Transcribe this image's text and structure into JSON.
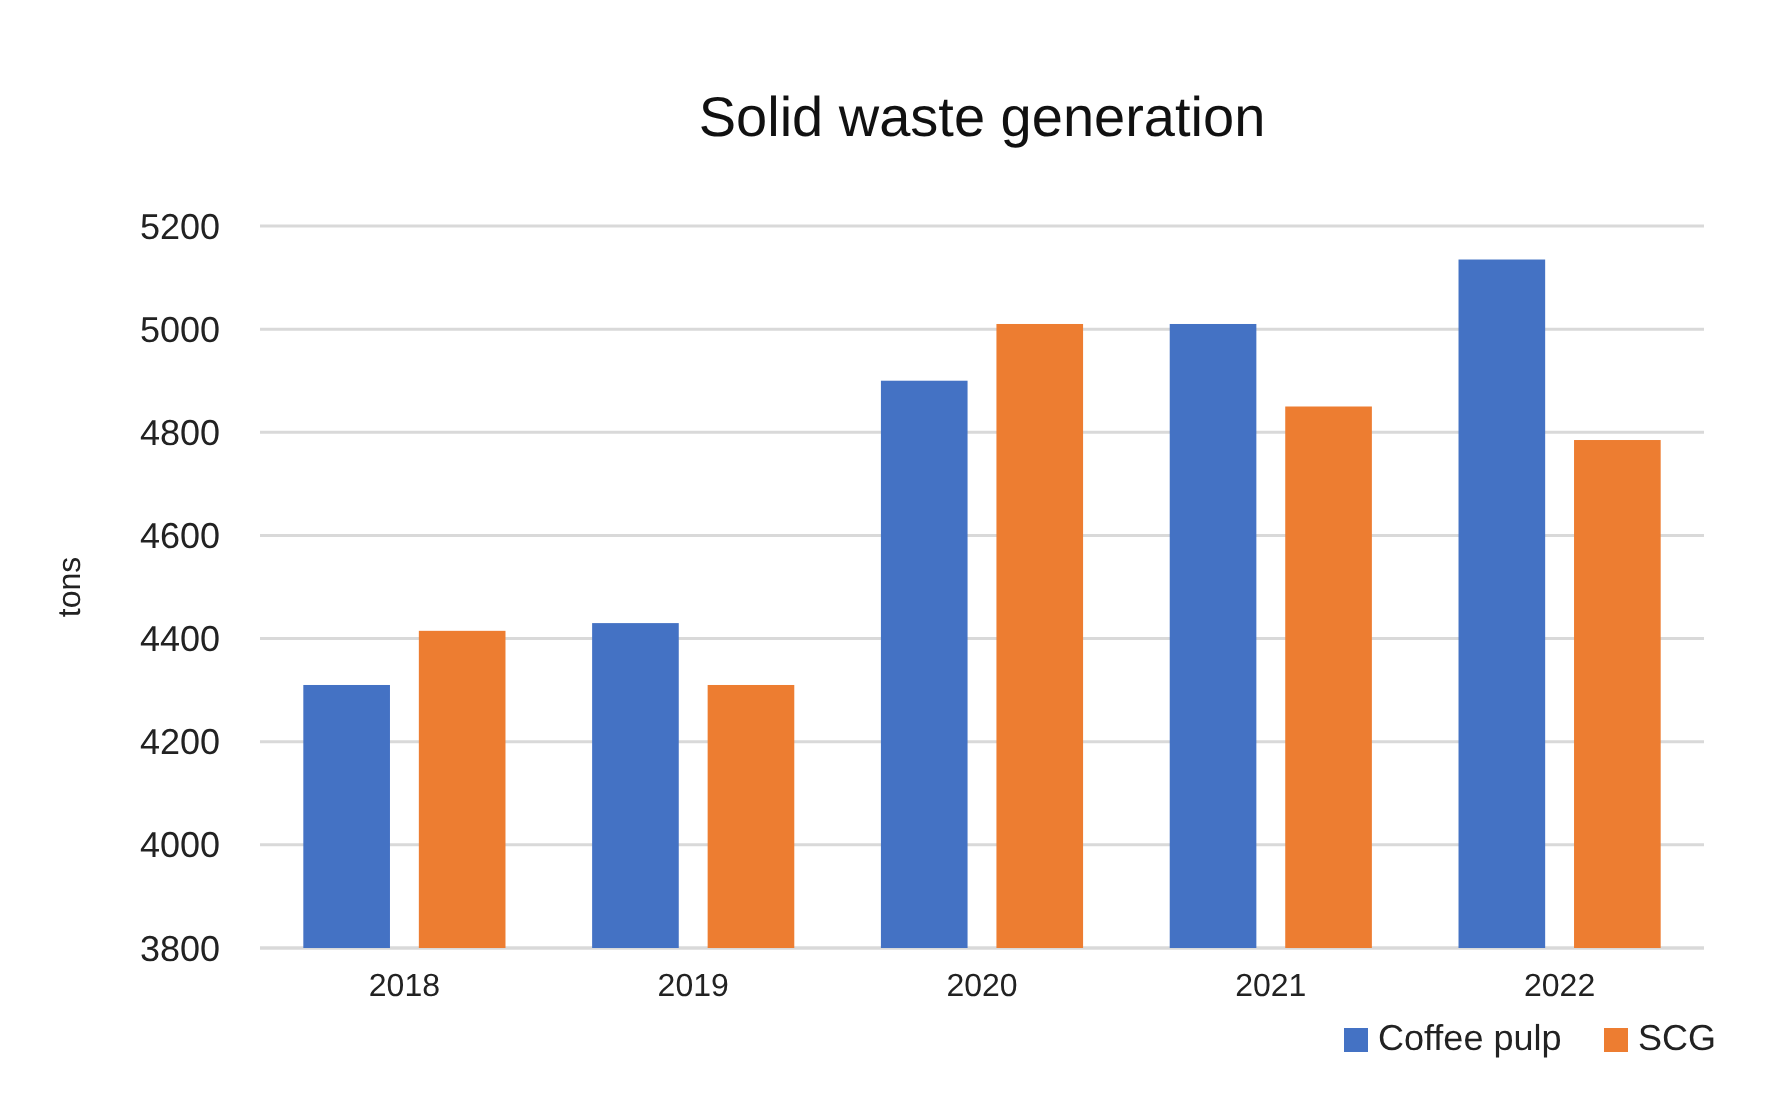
{
  "chart_data": {
    "type": "bar",
    "title": "Solid waste generation",
    "ylabel": "tons",
    "categories": [
      "2018",
      "2019",
      "2020",
      "2021",
      "2022"
    ],
    "series": [
      {
        "name": "Coffee pulp",
        "color": "#4472c4",
        "values": [
          4310,
          4430,
          4900,
          5010,
          5135
        ]
      },
      {
        "name": "SCG",
        "color": "#ed7d31",
        "values": [
          4415,
          4310,
          5010,
          4850,
          4785
        ]
      }
    ],
    "ylim": [
      3800,
      5200
    ],
    "yticks": [
      3800,
      4000,
      4200,
      4400,
      4600,
      4800,
      5000,
      5200
    ],
    "grid": "y",
    "legend": "bottom right"
  }
}
